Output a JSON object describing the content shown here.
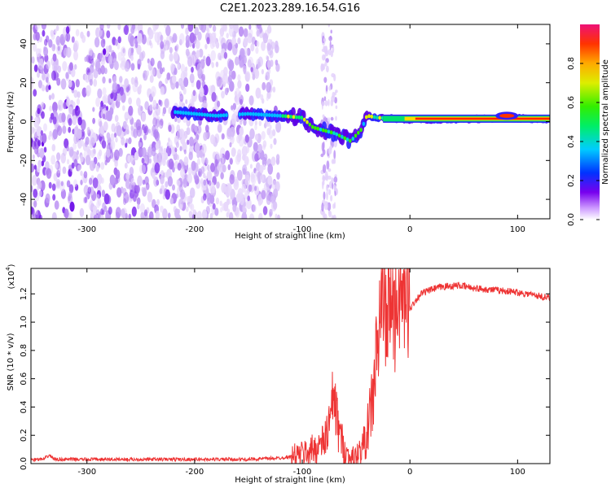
{
  "title": "C2E1.2023.289.16.54.G16",
  "chart_data": [
    {
      "type": "heatmap",
      "xlabel": "Height of straight line (km)",
      "ylabel": "Frequency (Hz)",
      "xlim": [
        -352,
        130
      ],
      "ylim": [
        -50,
        50
      ],
      "xticks": [
        -300,
        -200,
        -100,
        0,
        100
      ],
      "yticks": [
        -40,
        -20,
        0,
        20,
        40
      ],
      "colorbar": {
        "label": "Normalized spectral amplitude",
        "range": [
          0,
          1
        ],
        "ticks": [
          0.0,
          0.2,
          0.4,
          0.6,
          0.8
        ]
      },
      "features": {
        "noise_region_x": [
          -352,
          -122
        ],
        "interference_stripe_x": -75,
        "signal_track": [
          {
            "x": -220,
            "y": 5
          },
          {
            "x": -180,
            "y": 3
          },
          {
            "x": -150,
            "y": 4
          },
          {
            "x": -120,
            "y": 3
          },
          {
            "x": -100,
            "y": 2
          },
          {
            "x": -90,
            "y": -3
          },
          {
            "x": -70,
            "y": -6
          },
          {
            "x": -55,
            "y": -10
          },
          {
            "x": -45,
            "y": -4
          },
          {
            "x": -40,
            "y": 3
          },
          {
            "x": -30,
            "y": 2
          },
          {
            "x": 0,
            "y": 1
          },
          {
            "x": 50,
            "y": 1
          },
          {
            "x": 90,
            "y": 2
          },
          {
            "x": 130,
            "y": 1
          }
        ]
      }
    },
    {
      "type": "line",
      "xlabel": "Height of straight line (km)",
      "ylabel": "SNR (10 * v/v)",
      "y_multiplier": "(x10^4)",
      "y_multiplier_base": "(x10",
      "y_multiplier_exp": "4",
      "y_multiplier_close": ")",
      "xlim": [
        -352,
        130
      ],
      "ylim": [
        0,
        1.38
      ],
      "xticks": [
        -300,
        -200,
        -100,
        0,
        100
      ],
      "yticks": [
        "0.0",
        "0.2",
        "0.4",
        "0.6",
        "0.8",
        "1.0",
        "1.2"
      ],
      "series": [
        {
          "color": "#ee3333",
          "points": [
            [
              -352,
              0.03
            ],
            [
              -340,
              0.03
            ],
            [
              -335,
              0.06
            ],
            [
              -330,
              0.03
            ],
            [
              -300,
              0.03
            ],
            [
              -250,
              0.03
            ],
            [
              -200,
              0.03
            ],
            [
              -150,
              0.03
            ],
            [
              -120,
              0.04
            ],
            [
              -110,
              0.05
            ],
            [
              -100,
              0.07
            ],
            [
              -90,
              0.1
            ],
            [
              -80,
              0.15
            ],
            [
              -74,
              0.3
            ],
            [
              -70,
              0.5
            ],
            [
              -68,
              0.3
            ],
            [
              -64,
              0.18
            ],
            [
              -60,
              0.08
            ],
            [
              -55,
              0.04
            ],
            [
              -50,
              0.05
            ],
            [
              -45,
              0.1
            ],
            [
              -40,
              0.2
            ],
            [
              -35,
              0.45
            ],
            [
              -30,
              0.8
            ],
            [
              -26,
              1.2
            ],
            [
              -24,
              1.38
            ],
            [
              -22,
              0.9
            ],
            [
              -18,
              1.2
            ],
            [
              -14,
              1.05
            ],
            [
              -10,
              1.25
            ],
            [
              -5,
              1.15
            ],
            [
              0,
              1.1
            ],
            [
              10,
              1.2
            ],
            [
              20,
              1.23
            ],
            [
              30,
              1.25
            ],
            [
              45,
              1.26
            ],
            [
              60,
              1.24
            ],
            [
              75,
              1.23
            ],
            [
              90,
              1.22
            ],
            [
              110,
              1.2
            ],
            [
              130,
              1.17
            ]
          ]
        }
      ]
    }
  ]
}
